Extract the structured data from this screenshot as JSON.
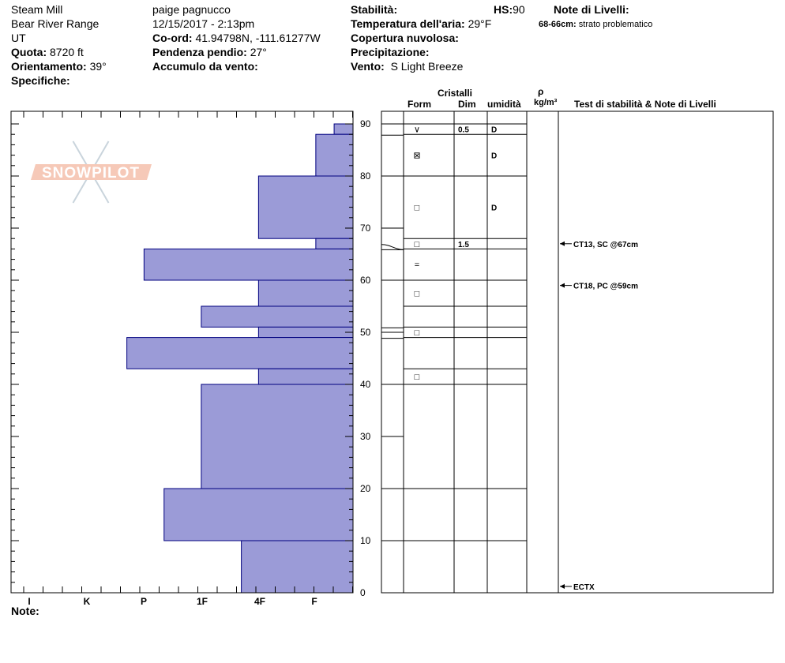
{
  "header": {
    "location": "Steam Mill",
    "range": "Bear River Range",
    "state": "UT",
    "elevation_label": "Quota:",
    "elevation_value": "8720 ft",
    "aspect_label": "Orientamento:",
    "aspect_value": "39°",
    "specifics_label": "Specifiche:",
    "observer": "paige pagnucco",
    "datetime": "12/15/2017 - 2:13pm",
    "coord_label": "Co-ord:",
    "coord_value": "41.94798N, -111.61277W",
    "slope_label": "Pendenza pendio:",
    "slope_value": "27°",
    "wind_loading_label": "Accumulo da vento:",
    "stability_label": "Stabilità:",
    "air_temp_label": "Temperatura dell'aria:",
    "air_temp_value": "29°F",
    "cloud_label": "Copertura nuvolosa:",
    "precip_label": "Precipitazione:",
    "wind_label": "Vento:",
    "wind_value": "S Light Breeze",
    "hs_label": "HS:",
    "hs_value": "90",
    "layer_notes_label": "Note di Livelli:",
    "layer_note_depth": "68-66cm:",
    "layer_note_text": "strato problematico"
  },
  "columns": {
    "crystals": "Cristalli",
    "form": "Form",
    "size": "Dim",
    "moisture": "umidità",
    "rho": "ρ",
    "density_unit": "kg/m³",
    "tests": "Test di stabilità & Note di Livelli"
  },
  "footer": {
    "note_label": "Note:"
  },
  "logo": {
    "text": "SNOWPILOT"
  },
  "colors": {
    "bar_fill": "#9b9bd7",
    "bar_stroke": "#00007f",
    "logo_red": "#f6c9b8"
  },
  "chart_data": {
    "type": "bar",
    "orientation": "horizontal",
    "x_categories": [
      "I",
      "K",
      "P",
      "1F",
      "4F",
      "F"
    ],
    "y_ticks": [
      0,
      10,
      20,
      30,
      40,
      50,
      60,
      70,
      80,
      90
    ],
    "ylim": [
      0,
      90
    ],
    "hardness_layers": [
      {
        "bottom": 88,
        "top": 90,
        "hardness": 0.33
      },
      {
        "bottom": 80,
        "top": 88,
        "hardness": 0.65
      },
      {
        "bottom": 68,
        "top": 80,
        "hardness": 1.65
      },
      {
        "bottom": 66,
        "top": 68,
        "hardness": 0.65
      },
      {
        "bottom": 60,
        "top": 66,
        "hardness": 3.65
      },
      {
        "bottom": 55,
        "top": 60,
        "hardness": 1.65
      },
      {
        "bottom": 51,
        "top": 55,
        "hardness": 2.65
      },
      {
        "bottom": 49,
        "top": 51,
        "hardness": 1.65
      },
      {
        "bottom": 43,
        "top": 49,
        "hardness": 3.95
      },
      {
        "bottom": 40,
        "top": 43,
        "hardness": 1.65
      },
      {
        "bottom": 20,
        "top": 40,
        "hardness": 2.65
      },
      {
        "bottom": 10,
        "top": 20,
        "hardness": 3.3
      },
      {
        "bottom": 0,
        "top": 10,
        "hardness": 1.95
      }
    ],
    "boundaries_right": [
      90,
      88,
      80,
      68,
      66,
      60,
      55,
      51,
      49,
      43,
      40,
      20,
      10
    ],
    "layer_rows": [
      {
        "form": "∨",
        "size": "0.5",
        "moisture": "D"
      },
      {
        "form": "⊠",
        "size": "",
        "moisture": "D"
      },
      {
        "form": "□",
        "size": "",
        "moisture": "D"
      },
      {
        "form": "□",
        "size": "1.5",
        "moisture": ""
      },
      {
        "form": "=",
        "size": "",
        "moisture": ""
      },
      {
        "form": "□",
        "size": "",
        "moisture": ""
      },
      {
        "form": "",
        "size": "",
        "moisture": ""
      },
      {
        "form": "□",
        "size": "",
        "moisture": ""
      },
      {
        "form": "",
        "size": "",
        "moisture": ""
      },
      {
        "form": "□",
        "size": "",
        "moisture": ""
      },
      {
        "form": "",
        "size": "",
        "moisture": ""
      },
      {
        "form": "",
        "size": "",
        "moisture": ""
      },
      {
        "form": "",
        "size": "",
        "moisture": ""
      }
    ],
    "tests": [
      {
        "depth": 67,
        "label": "CT13, SC @67cm"
      },
      {
        "depth": 59,
        "label": "CT18, PC @59cm"
      },
      {
        "depth": 0,
        "label": "ECTX"
      }
    ]
  }
}
